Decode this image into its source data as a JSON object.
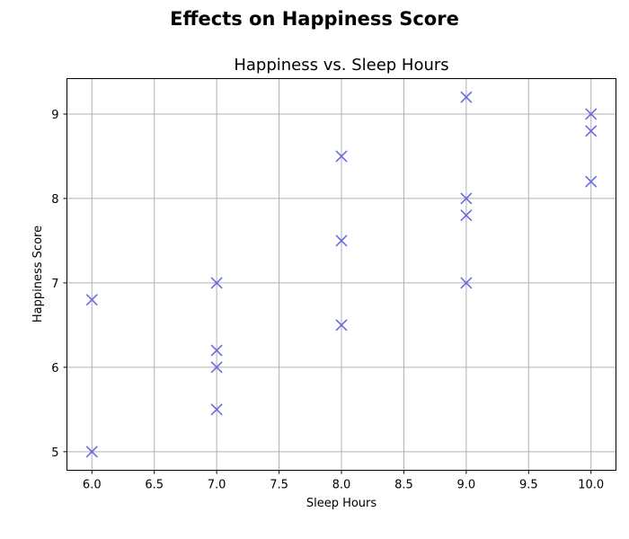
{
  "figure": {
    "suptitle": "Effects on Happiness Score"
  },
  "chart_data": {
    "type": "scatter",
    "title": "Happiness vs. Sleep Hours",
    "xlabel": "Sleep Hours",
    "ylabel": "Happiness Score",
    "xlim": [
      5.8,
      10.2
    ],
    "ylim": [
      4.78,
      9.42
    ],
    "xticks": [
      6.0,
      6.5,
      7.0,
      7.5,
      8.0,
      8.5,
      9.0,
      9.5,
      10.0
    ],
    "xtick_labels": [
      "6.0",
      "6.5",
      "7.0",
      "7.5",
      "8.0",
      "8.5",
      "9.0",
      "9.5",
      "10.0"
    ],
    "yticks": [
      5,
      6,
      7,
      8,
      9
    ],
    "ytick_labels": [
      "5",
      "6",
      "7",
      "8",
      "9"
    ],
    "grid": true,
    "marker": "x",
    "color": "#6b6be0",
    "points": [
      {
        "x": 6,
        "y": 6.8
      },
      {
        "x": 6,
        "y": 5.0
      },
      {
        "x": 7,
        "y": 7.0
      },
      {
        "x": 7,
        "y": 6.2
      },
      {
        "x": 7,
        "y": 6.0
      },
      {
        "x": 7,
        "y": 5.5
      },
      {
        "x": 8,
        "y": 8.5
      },
      {
        "x": 8,
        "y": 7.5
      },
      {
        "x": 8,
        "y": 6.5
      },
      {
        "x": 9,
        "y": 9.2
      },
      {
        "x": 9,
        "y": 8.0
      },
      {
        "x": 9,
        "y": 7.8
      },
      {
        "x": 9,
        "y": 7.0
      },
      {
        "x": 10,
        "y": 9.0
      },
      {
        "x": 10,
        "y": 8.8
      },
      {
        "x": 10,
        "y": 8.2
      }
    ]
  }
}
